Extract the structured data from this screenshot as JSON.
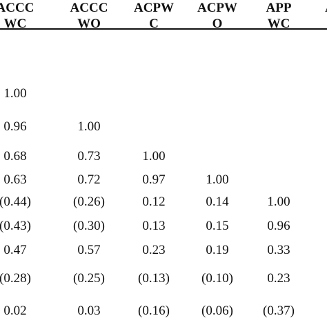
{
  "table": {
    "columns": [
      {
        "line1": "ACCC",
        "line2": "WC"
      },
      {
        "line1": "ACCC",
        "line2": "WO"
      },
      {
        "line1": "ACPW",
        "line2": "C"
      },
      {
        "line1": "ACPW",
        "line2": "O"
      },
      {
        "line1": "APP",
        "line2": "WC"
      },
      {
        "line1": "A",
        "line2": ""
      }
    ],
    "rows": [
      [
        "1.00",
        "",
        "",
        "",
        "",
        ""
      ],
      [
        "0.96",
        "1.00",
        "",
        "",
        "",
        ""
      ],
      [
        "0.68",
        "0.73",
        "1.00",
        "",
        "",
        ""
      ],
      [
        "0.63",
        "0.72",
        "0.97",
        "1.00",
        "",
        ""
      ],
      [
        "(0.44)",
        "(0.26)",
        "0.12",
        "0.14",
        "1.00",
        ""
      ],
      [
        "(0.43)",
        "(0.30)",
        "0.13",
        "0.15",
        "0.96",
        ""
      ],
      [
        "0.47",
        "0.57",
        "0.23",
        "0.19",
        "0.33",
        ""
      ],
      [
        "(0.28)",
        "(0.25)",
        "(0.13)",
        "(0.10)",
        "0.23",
        ""
      ],
      [
        "0.02",
        "0.03",
        "(0.16)",
        "(0.06)",
        "(0.37)",
        ""
      ]
    ]
  }
}
